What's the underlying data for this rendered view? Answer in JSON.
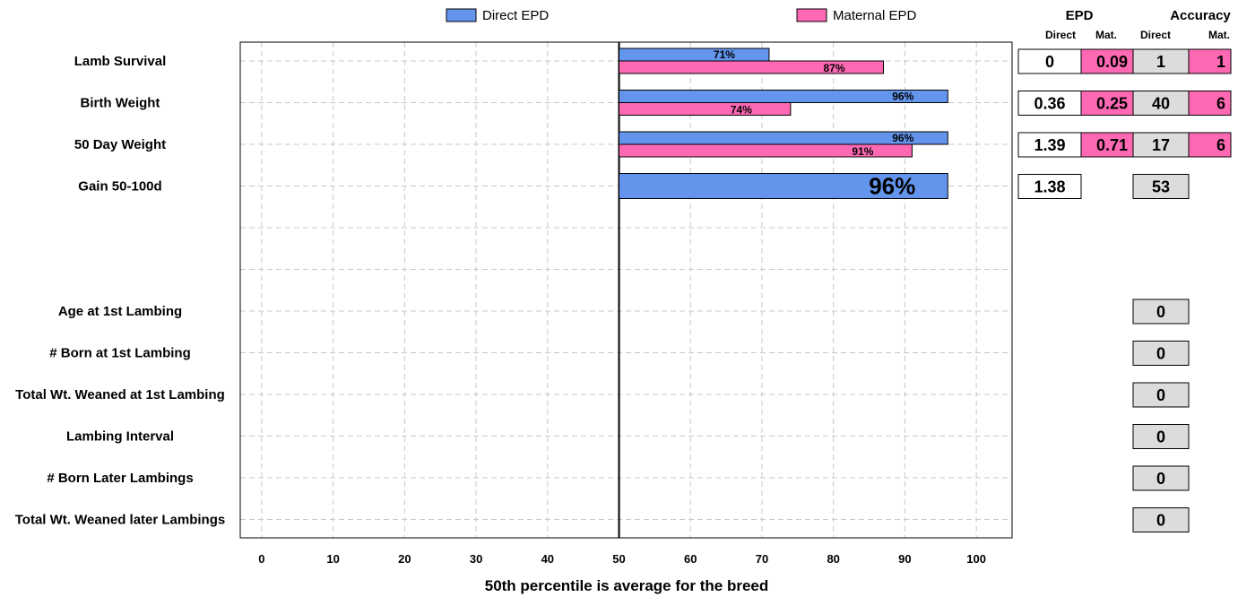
{
  "chart_data": {
    "type": "bar",
    "orientation": "horizontal",
    "title": "",
    "xlabel": "50th percentile is average for the breed",
    "xlim": [
      -3,
      105
    ],
    "xticks": [
      0,
      10,
      20,
      30,
      40,
      50,
      60,
      70,
      80,
      90,
      100
    ],
    "reference_line": 50,
    "grid": true,
    "legend": {
      "placement": "top",
      "entries": [
        {
          "label": "Direct EPD",
          "color": "#6495ED"
        },
        {
          "label": "Maternal EPD",
          "color": "#FF69B4"
        }
      ]
    },
    "categories": [
      "Lamb Survival",
      "Birth Weight",
      "50 Day Weight",
      "Gain 50-100d",
      "",
      "",
      "Age at 1st Lambing",
      "# Born at 1st Lambing",
      "Total Wt. Weaned at 1st Lambing",
      "Lambing Interval",
      "# Born Later Lambings",
      "Total Wt. Weaned later Lambings"
    ],
    "series": [
      {
        "name": "Direct EPD",
        "color": "#6495ED",
        "values": [
          71,
          96,
          96,
          96,
          null,
          null,
          null,
          null,
          null,
          null,
          null,
          null
        ],
        "labels": [
          "71%",
          "96%",
          "96%",
          "96%",
          "",
          "",
          "",
          "",
          "",
          "",
          "",
          ""
        ]
      },
      {
        "name": "Maternal EPD",
        "color": "#FF69B4",
        "values": [
          87,
          74,
          91,
          null,
          null,
          null,
          null,
          null,
          null,
          null,
          null,
          null
        ],
        "labels": [
          "87%",
          "74%",
          "91%",
          "",
          "",
          "",
          "",
          "",
          "",
          "",
          "",
          ""
        ]
      }
    ]
  },
  "table": {
    "group_headers": {
      "epd": "EPD",
      "accuracy": "Accuracy"
    },
    "sub_headers": [
      "Direct",
      "Mat.",
      "Direct",
      "Mat."
    ],
    "rows": [
      {
        "epd_direct": "0",
        "epd_mat": "0.09",
        "acc_direct": "1",
        "acc_mat": "1"
      },
      {
        "epd_direct": "0.36",
        "epd_mat": "0.25",
        "acc_direct": "40",
        "acc_mat": "6"
      },
      {
        "epd_direct": "1.39",
        "epd_mat": "0.71",
        "acc_direct": "17",
        "acc_mat": "6"
      },
      {
        "epd_direct": "1.38",
        "epd_mat": null,
        "acc_direct": "53",
        "acc_mat": null
      },
      {
        "epd_direct": null,
        "epd_mat": null,
        "acc_direct": null,
        "acc_mat": null
      },
      {
        "epd_direct": null,
        "epd_mat": null,
        "acc_direct": null,
        "acc_mat": null
      },
      {
        "epd_direct": null,
        "epd_mat": null,
        "acc_direct": "0",
        "acc_mat": null
      },
      {
        "epd_direct": null,
        "epd_mat": null,
        "acc_direct": "0",
        "acc_mat": null
      },
      {
        "epd_direct": null,
        "epd_mat": null,
        "acc_direct": "0",
        "acc_mat": null
      },
      {
        "epd_direct": null,
        "epd_mat": null,
        "acc_direct": "0",
        "acc_mat": null
      },
      {
        "epd_direct": null,
        "epd_mat": null,
        "acc_direct": "0",
        "acc_mat": null
      },
      {
        "epd_direct": null,
        "epd_mat": null,
        "acc_direct": "0",
        "acc_mat": null
      }
    ],
    "colors": {
      "direct_cell": "#FFFFFF",
      "maternal_cell": "#FF69B4",
      "accuracy_direct_cell": "#DCDCDC"
    }
  }
}
